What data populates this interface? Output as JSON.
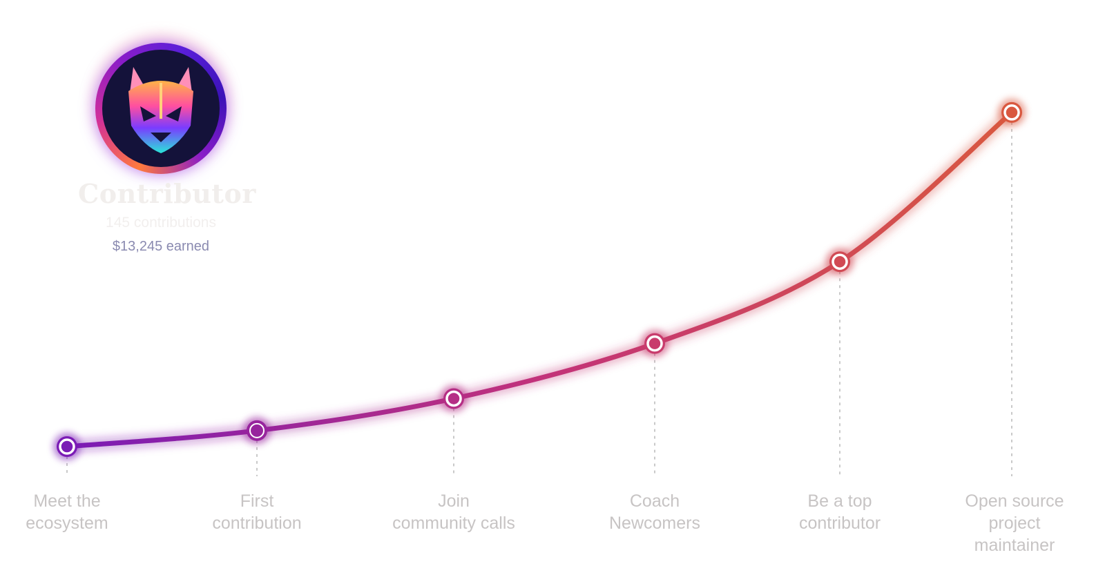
{
  "profile": {
    "title": "Contributor",
    "contributions": "145 contributions",
    "earned": "$13,245 earned",
    "avatar_icon": "fox-mask-icon"
  },
  "colors": {
    "curve_start": "#7a1bb5",
    "curve_mid": "#c2327a",
    "curve_end": "#d9583f",
    "label": "#c7c4c4",
    "earned": "#8a8ab0",
    "title": "#f1eeec",
    "guide": "#c9c9c9"
  },
  "steps": [
    {
      "label": "Meet the\necosystem",
      "level": 0.0,
      "state": "current"
    },
    {
      "label": "First\ncontribution",
      "level": 0.045,
      "state": "done"
    },
    {
      "label": "Join\ncommunity calls",
      "level": 0.135,
      "state": "upcoming"
    },
    {
      "label": "Coach\nNewcomers",
      "level": 0.29,
      "state": "upcoming"
    },
    {
      "label": "Be a top\ncontributor",
      "level": 0.52,
      "state": "upcoming"
    },
    {
      "label": "Open source\nproject\nmaintainer",
      "level": 0.94,
      "state": "upcoming"
    }
  ]
}
